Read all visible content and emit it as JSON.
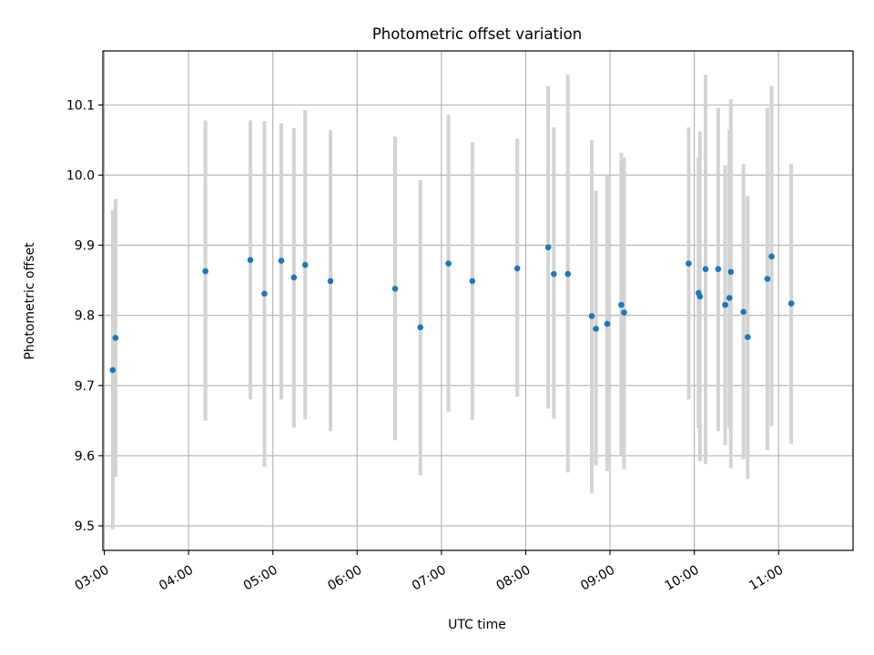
{
  "chart_data": {
    "type": "scatter",
    "title": "Photometric offset variation",
    "xlabel": "UTC time",
    "ylabel": "Photometric offset",
    "x_unit": "UTC time (HH:MM)",
    "xlim": [
      "02:59",
      "11:53"
    ],
    "ylim": [
      9.465,
      10.177
    ],
    "xticks": [
      "03:00",
      "04:00",
      "05:00",
      "06:00",
      "07:00",
      "08:00",
      "09:00",
      "10:00",
      "11:00"
    ],
    "yticks": [
      9.5,
      9.6,
      9.7,
      9.8,
      9.9,
      10.0,
      10.1
    ],
    "grid": true,
    "colors": {
      "marker": "#1f77b4",
      "errorbar": "#d3d3d3",
      "grid": "#b0b0b0"
    },
    "points": [
      {
        "x": "03:06",
        "y": 9.722,
        "ylow": 9.495,
        "yhigh": 9.95
      },
      {
        "x": "03:08",
        "y": 9.768,
        "ylow": 9.57,
        "yhigh": 9.966
      },
      {
        "x": "04:12",
        "y": 9.863,
        "ylow": 9.65,
        "yhigh": 10.078
      },
      {
        "x": "04:44",
        "y": 9.879,
        "ylow": 9.68,
        "yhigh": 10.078
      },
      {
        "x": "04:54",
        "y": 9.831,
        "ylow": 9.584,
        "yhigh": 10.077
      },
      {
        "x": "05:06",
        "y": 9.878,
        "ylow": 9.68,
        "yhigh": 10.074
      },
      {
        "x": "05:15",
        "y": 9.854,
        "ylow": 9.64,
        "yhigh": 10.067
      },
      {
        "x": "05:23",
        "y": 9.872,
        "ylow": 9.652,
        "yhigh": 10.093
      },
      {
        "x": "05:41",
        "y": 9.849,
        "ylow": 9.635,
        "yhigh": 10.064
      },
      {
        "x": "06:27",
        "y": 9.838,
        "ylow": 9.622,
        "yhigh": 10.055
      },
      {
        "x": "06:45",
        "y": 9.783,
        "ylow": 9.572,
        "yhigh": 9.993
      },
      {
        "x": "07:05",
        "y": 9.874,
        "ylow": 9.663,
        "yhigh": 10.086
      },
      {
        "x": "07:22",
        "y": 9.849,
        "ylow": 9.651,
        "yhigh": 10.047
      },
      {
        "x": "07:54",
        "y": 9.867,
        "ylow": 9.684,
        "yhigh": 10.052
      },
      {
        "x": "08:16",
        "y": 9.897,
        "ylow": 9.667,
        "yhigh": 10.127
      },
      {
        "x": "08:20",
        "y": 9.859,
        "ylow": 9.653,
        "yhigh": 10.068
      },
      {
        "x": "08:30",
        "y": 9.859,
        "ylow": 9.576,
        "yhigh": 10.143
      },
      {
        "x": "08:47",
        "y": 9.799,
        "ylow": 9.547,
        "yhigh": 10.05
      },
      {
        "x": "08:50",
        "y": 9.781,
        "ylow": 9.586,
        "yhigh": 9.978
      },
      {
        "x": "08:58",
        "y": 9.788,
        "ylow": 9.578,
        "yhigh": 10.0
      },
      {
        "x": "09:08",
        "y": 9.815,
        "ylow": 9.6,
        "yhigh": 10.032
      },
      {
        "x": "09:10",
        "y": 9.804,
        "ylow": 9.581,
        "yhigh": 10.025
      },
      {
        "x": "09:56",
        "y": 9.874,
        "ylow": 9.68,
        "yhigh": 10.068
      },
      {
        "x": "10:03",
        "y": 9.832,
        "ylow": 9.64,
        "yhigh": 10.025
      },
      {
        "x": "10:04",
        "y": 9.827,
        "ylow": 9.592,
        "yhigh": 10.062
      },
      {
        "x": "10:08",
        "y": 9.866,
        "ylow": 9.588,
        "yhigh": 10.143
      },
      {
        "x": "10:17",
        "y": 9.866,
        "ylow": 9.635,
        "yhigh": 10.096
      },
      {
        "x": "10:22",
        "y": 9.815,
        "ylow": 9.615,
        "yhigh": 10.014
      },
      {
        "x": "10:25",
        "y": 9.825,
        "ylow": 9.64,
        "yhigh": 10.065
      },
      {
        "x": "10:26",
        "y": 9.862,
        "ylow": 9.582,
        "yhigh": 10.108
      },
      {
        "x": "10:35",
        "y": 9.805,
        "ylow": 9.595,
        "yhigh": 10.016
      },
      {
        "x": "10:38",
        "y": 9.769,
        "ylow": 9.567,
        "yhigh": 9.97
      },
      {
        "x": "10:52",
        "y": 9.852,
        "ylow": 9.608,
        "yhigh": 10.096
      },
      {
        "x": "10:55",
        "y": 9.884,
        "ylow": 9.642,
        "yhigh": 10.127
      },
      {
        "x": "11:09",
        "y": 9.817,
        "ylow": 9.617,
        "yhigh": 10.016
      }
    ]
  }
}
